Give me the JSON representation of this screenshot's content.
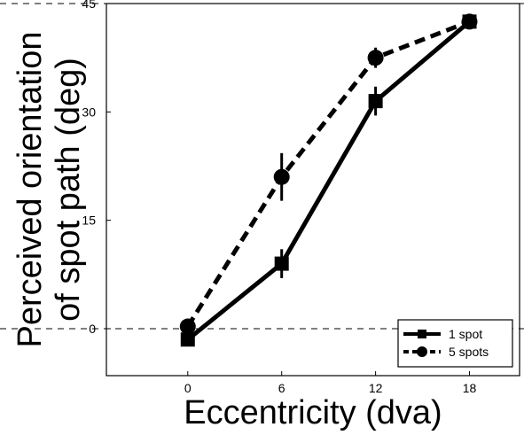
{
  "chart_data": {
    "type": "line",
    "xlabel": "Eccentricity (dva)",
    "ylabel_lines": [
      "Perceived orientation",
      "of spot path (deg)"
    ],
    "xlim": [
      -5.2,
      21.2
    ],
    "ylim": [
      -6.5,
      45
    ],
    "x_ticks": [
      0,
      6,
      12,
      18
    ],
    "y_ticks": [
      0,
      15,
      30,
      45
    ],
    "reference_lines": [
      0,
      45
    ],
    "legend_position": "bottom-right",
    "series": [
      {
        "name": "1 spot",
        "marker": "square",
        "line_style": "solid",
        "points": [
          {
            "x": 0,
            "y": -1.5,
            "err": 0.8
          },
          {
            "x": 6,
            "y": 9,
            "err": 2.0
          },
          {
            "x": 12,
            "y": 31.5,
            "err": 2.0
          },
          {
            "x": 18,
            "y": 42.5,
            "err": 0.8
          }
        ]
      },
      {
        "name": "5 spots",
        "marker": "circle",
        "line_style": "dashed",
        "points": [
          {
            "x": 0,
            "y": 0.3,
            "err": 0.5
          },
          {
            "x": 6,
            "y": 21,
            "err": 3.3
          },
          {
            "x": 12,
            "y": 37.5,
            "err": 1.4
          },
          {
            "x": 18,
            "y": 42.5,
            "err": 0.6
          }
        ]
      }
    ]
  }
}
